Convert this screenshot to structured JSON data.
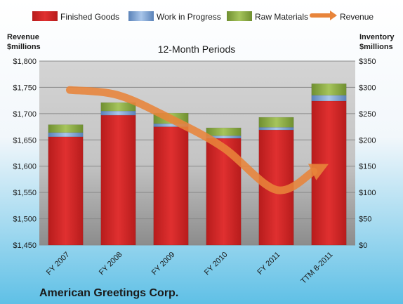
{
  "chart_data": {
    "type": "bar",
    "title": "12-Month Periods",
    "company": "American Greetings Corp.",
    "categories": [
      "FY 2007",
      "FY 2008",
      "FY 2009",
      "FY 2010",
      "FY 2011",
      "TTM 8-2011"
    ],
    "stacked": true,
    "series": [
      {
        "name": "Finished Goods",
        "axis": "right",
        "color": "#e03030",
        "values": [
          206,
          247,
          225,
          203,
          219,
          274
        ]
      },
      {
        "name": "Work in Progress",
        "axis": "right",
        "color": "#7da6d8",
        "values": [
          8,
          8,
          6,
          5,
          5,
          11
        ]
      },
      {
        "name": "Raw Materials",
        "axis": "right",
        "color": "#8fb24a",
        "values": [
          15,
          16,
          20,
          15,
          19,
          22
        ]
      }
    ],
    "line_series": {
      "name": "Revenue",
      "axis": "left",
      "color": "#e8843a",
      "values": [
        1745,
        1735,
        1690,
        1635,
        1555,
        1590
      ]
    },
    "left_axis": {
      "label_line1": "Revenue",
      "label_line2": "$millions",
      "min": 1450,
      "max": 1800,
      "ticks": [
        "$1,450",
        "$1,500",
        "$1,550",
        "$1,600",
        "$1,650",
        "$1,700",
        "$1,750",
        "$1,800"
      ]
    },
    "right_axis": {
      "label_line1": "Inventory",
      "label_line2": "$millions",
      "min": 0,
      "max": 350,
      "ticks": [
        "$0",
        "$50",
        "$100",
        "$150",
        "$200",
        "$250",
        "$300",
        "$350"
      ]
    },
    "legend": {
      "position": "top",
      "entries": [
        "Finished Goods",
        "Work in Progress",
        "Raw Materials",
        "Revenue"
      ]
    },
    "grid": true
  }
}
